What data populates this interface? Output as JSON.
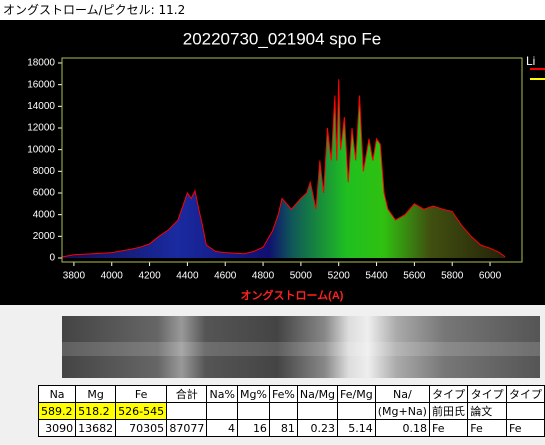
{
  "header": {
    "label": "オングストローム/ピクセル: 11.2"
  },
  "chart_data": {
    "type": "line",
    "title": "20220730_021904 spo Fe",
    "x_label": "オングストローム(A)",
    "legend_title": "Li",
    "x": [
      3740,
      3800,
      3900,
      4000,
      4100,
      4150,
      4200,
      4250,
      4300,
      4350,
      4380,
      4400,
      4420,
      4440,
      4460,
      4480,
      4500,
      4550,
      4600,
      4700,
      4750,
      4800,
      4850,
      4880,
      4900,
      4950,
      5000,
      5030,
      5050,
      5080,
      5100,
      5120,
      5140,
      5160,
      5180,
      5190,
      5200,
      5210,
      5230,
      5250,
      5270,
      5290,
      5310,
      5330,
      5360,
      5380,
      5400,
      5420,
      5440,
      5460,
      5500,
      5550,
      5600,
      5650,
      5700,
      5750,
      5800,
      5850,
      5900,
      5950,
      6000,
      6050,
      6080
    ],
    "series": [
      {
        "color": "#ff0000",
        "values": [
          100,
          300,
          400,
          500,
          800,
          1000,
          1300,
          2000,
          2600,
          3500,
          5000,
          6000,
          5500,
          6200,
          4500,
          3000,
          1200,
          600,
          500,
          400,
          600,
          1000,
          2500,
          4000,
          5500,
          4500,
          5500,
          6000,
          7000,
          4500,
          9000,
          6000,
          12000,
          9000,
          15000,
          9000,
          16500,
          10000,
          13000,
          7000,
          12000,
          9000,
          15000,
          8000,
          11000,
          9000,
          11000,
          10500,
          6000,
          4500,
          3500,
          4000,
          5000,
          4500,
          4800,
          4500,
          4300,
          3000,
          2000,
          1200,
          900,
          500,
          100
        ]
      }
    ],
    "xlim": [
      3737,
      6169
    ],
    "ylim": [
      -370,
      18460
    ],
    "xticks": [
      3800,
      4000,
      4200,
      4400,
      4600,
      4800,
      5000,
      5200,
      5400,
      5600,
      5800,
      6000
    ],
    "yticks": [
      0,
      2000,
      4000,
      6000,
      8000,
      10000,
      12000,
      14000,
      16000,
      18000
    ]
  },
  "table": {
    "headers": [
      "Na",
      "Mg",
      "Fe",
      "合計",
      "Na%",
      "Mg%",
      "Fe%",
      "Na/Mg",
      "Fe/Mg",
      "Na/",
      "タイプ",
      "タイプ",
      "タイプ"
    ],
    "rows": [
      [
        "589.2",
        "518.2",
        "526-545",
        "",
        "",
        "",
        "",
        "",
        "",
        "(Mg+Na)",
        "前田氏",
        "論文",
        ""
      ],
      [
        3090,
        13682,
        70305,
        87077,
        4,
        16,
        81,
        0.23,
        5.14,
        0.18,
        "Fe",
        "Fe",
        "Fe"
      ]
    ]
  }
}
